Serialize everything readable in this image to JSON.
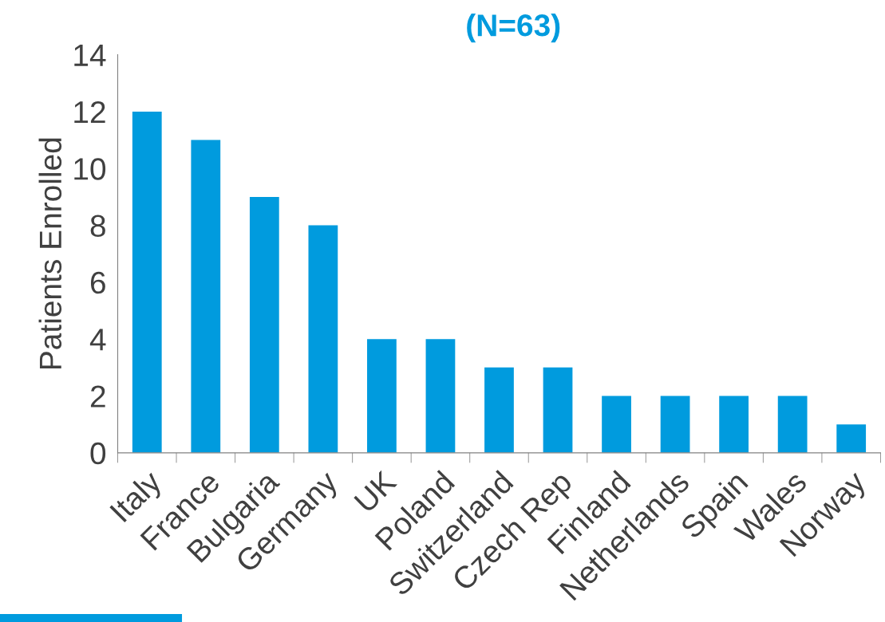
{
  "chart_data": {
    "type": "bar",
    "title": "(N=63)",
    "ylabel": "Patients Enrolled",
    "categories": [
      "Italy",
      "France",
      "Bulgaria",
      "Germany",
      "UK",
      "Poland",
      "Switzerland",
      "Czech Rep",
      "Finland",
      "Netherlands",
      "Spain",
      "Wales",
      "Norway"
    ],
    "values": [
      12,
      11,
      9,
      8,
      4,
      4,
      3,
      3,
      2,
      2,
      2,
      2,
      1
    ],
    "color": "#009bde",
    "ylim": [
      0,
      14
    ],
    "yticks": [
      0,
      2,
      4,
      6,
      8,
      10,
      12,
      14
    ],
    "grid": false,
    "legend": false
  }
}
